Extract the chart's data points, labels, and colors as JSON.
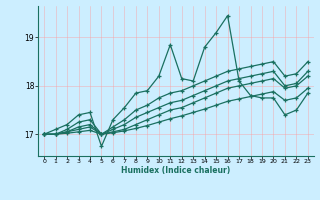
{
  "title": "",
  "xlabel": "Humidex (Indice chaleur)",
  "bg_color": "#cceeff",
  "line_color": "#1a7060",
  "grid_color": "#ff9999",
  "ylim": [
    16.55,
    19.65
  ],
  "xlim": [
    -0.5,
    23.5
  ],
  "yticks": [
    17,
    18,
    19
  ],
  "xticks": [
    0,
    1,
    2,
    3,
    4,
    5,
    6,
    7,
    8,
    9,
    10,
    11,
    12,
    13,
    14,
    15,
    16,
    17,
    18,
    19,
    20,
    21,
    22,
    23
  ],
  "lines": [
    [
      17.0,
      17.1,
      17.2,
      17.4,
      17.45,
      16.75,
      17.3,
      17.55,
      17.85,
      17.9,
      18.2,
      18.85,
      18.15,
      18.1,
      18.8,
      19.1,
      19.45,
      18.1,
      17.8,
      17.75,
      17.75,
      17.4,
      17.5,
      17.85
    ],
    [
      17.0,
      17.0,
      17.1,
      17.25,
      17.3,
      17.0,
      17.15,
      17.3,
      17.5,
      17.6,
      17.75,
      17.85,
      17.9,
      18.0,
      18.1,
      18.2,
      18.3,
      18.35,
      18.4,
      18.45,
      18.5,
      18.2,
      18.25,
      18.5
    ],
    [
      17.0,
      17.0,
      17.05,
      17.15,
      17.2,
      17.0,
      17.1,
      17.2,
      17.35,
      17.45,
      17.55,
      17.65,
      17.7,
      17.8,
      17.9,
      18.0,
      18.1,
      18.15,
      18.2,
      18.25,
      18.3,
      18.0,
      18.05,
      18.3
    ],
    [
      17.0,
      17.0,
      17.05,
      17.1,
      17.15,
      17.0,
      17.05,
      17.1,
      17.2,
      17.3,
      17.4,
      17.5,
      17.55,
      17.65,
      17.75,
      17.85,
      17.95,
      18.0,
      18.05,
      18.1,
      18.15,
      17.95,
      18.0,
      18.2
    ],
    [
      17.0,
      17.0,
      17.02,
      17.05,
      17.08,
      17.0,
      17.03,
      17.07,
      17.12,
      17.18,
      17.25,
      17.32,
      17.38,
      17.45,
      17.52,
      17.6,
      17.68,
      17.73,
      17.78,
      17.83,
      17.88,
      17.7,
      17.75,
      17.95
    ]
  ]
}
